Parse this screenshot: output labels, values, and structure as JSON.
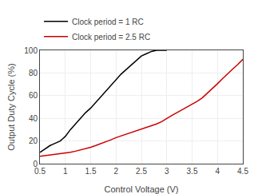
{
  "chart_data": {
    "type": "line",
    "x_label": "Control Voltage (V)",
    "y_label": "Output Duty Cycle (%)",
    "xlim": [
      0.5,
      4.5
    ],
    "ylim": [
      0,
      100
    ],
    "xticks": [
      0.5,
      1,
      1.5,
      2,
      2.5,
      3,
      3.5,
      4,
      4.5
    ],
    "yticks": [
      0,
      20,
      40,
      60,
      80,
      100
    ],
    "grid": true,
    "legend": "top",
    "series": [
      {
        "name": "Clock period = 1 RC",
        "color": "#000000",
        "x": [
          0.5,
          0.6,
          0.65,
          0.7,
          0.75,
          0.8,
          0.85,
          0.9,
          0.95,
          1.0,
          1.1,
          1.2,
          1.3,
          1.4,
          1.5,
          1.6,
          1.7,
          1.8,
          1.9,
          2.0,
          2.1,
          2.2,
          2.3,
          2.4,
          2.5,
          2.6,
          2.7,
          2.8,
          2.9,
          3.0
        ],
        "values": [
          10,
          13,
          15,
          16,
          17,
          18,
          19,
          20,
          22,
          24,
          30,
          35,
          40,
          45,
          49,
          54,
          59,
          64,
          69,
          74,
          79,
          83,
          87,
          91,
          95,
          97,
          99,
          100,
          100,
          100
        ]
      },
      {
        "name": "Clock period = 2.5 RC",
        "color": "#cc0000",
        "x": [
          0.5,
          0.6,
          0.7,
          0.8,
          0.9,
          1.0,
          1.1,
          1.2,
          1.3,
          1.4,
          1.5,
          1.6,
          1.7,
          1.8,
          1.9,
          2.0,
          2.1,
          2.2,
          2.3,
          2.4,
          2.5,
          2.6,
          2.7,
          2.8,
          2.9,
          3.0,
          3.1,
          3.2,
          3.3,
          3.4,
          3.5,
          3.6,
          3.7,
          3.8,
          3.9,
          4.0,
          4.1,
          4.2,
          4.3,
          4.4,
          4.5
        ],
        "values": [
          6.5,
          7.0,
          7.5,
          8.0,
          8.5,
          9.0,
          10.0,
          11.0,
          12.0,
          13.0,
          14.5,
          16.0,
          17.5,
          19.0,
          21.0,
          23.0,
          24.5,
          26.0,
          27.5,
          29.0,
          30.0,
          31.5,
          33.0,
          35.0,
          37.0,
          40.0,
          42.5,
          45.0,
          47.5,
          50.0,
          52.0,
          55.0,
          58.0,
          62.0,
          66.0,
          70.5,
          75.0,
          79.5,
          83.5,
          87.5,
          92.0
        ]
      }
    ]
  }
}
